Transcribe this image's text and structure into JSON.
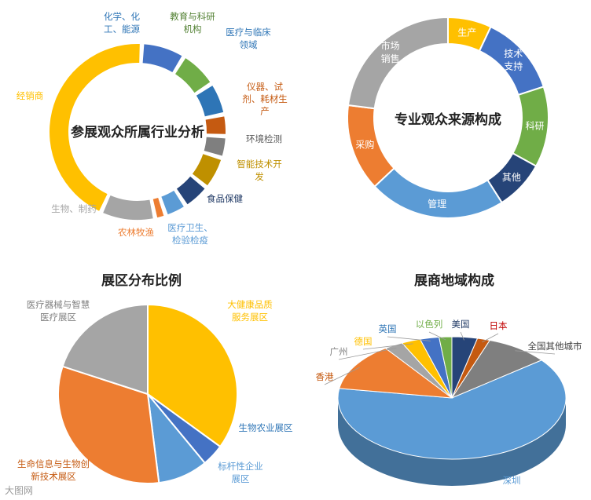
{
  "chart_data": [
    {
      "type": "pie",
      "variant": "donut",
      "title": "参展观众所属行业分析",
      "series": [
        {
          "values": [
            8,
            7,
            6,
            4,
            4,
            6,
            5,
            4,
            2,
            10,
            44
          ],
          "labels": [
            [
              "化学、化",
              "工、能源"
            ],
            [
              "教育与科研",
              "机构"
            ],
            [
              "医疗与临床",
              "领域"
            ],
            [
              "仪器、试",
              "剂、耗材生",
              "产"
            ],
            [
              "环境检测"
            ],
            [
              "智能技术开",
              "发"
            ],
            [
              "食品保健"
            ],
            [
              "医疗卫生、",
              "检验检疫"
            ],
            [
              "农林牧渔"
            ],
            [
              "生物、制药"
            ],
            [
              "经销商"
            ]
          ],
          "colors": [
            "#4472c4",
            "#70ad47",
            "#2e75b6",
            "#c55a11",
            "#7f7f7f",
            "#bf9000",
            "#264478",
            "#5b9bd5",
            "#ed7d31",
            "#a5a5a5",
            "#ffc000"
          ],
          "label_colors": [
            "#2e75b6",
            "#548235",
            "#2e75b6",
            "#c55a11",
            "#595959",
            "#bf9000",
            "#1f3864",
            "#5b9bd5",
            "#ed7d31",
            "#a5a5a5",
            "#ffc000"
          ]
        }
      ]
    },
    {
      "type": "pie",
      "variant": "donut",
      "title": "专业观众来源构成",
      "series": [
        {
          "values": [
            7,
            13,
            13,
            8,
            22,
            14,
            23
          ],
          "labels": [
            [
              "生产"
            ],
            [
              "技术",
              "支持"
            ],
            [
              "科研"
            ],
            [
              "其他"
            ],
            [
              "管理"
            ],
            [
              "采购"
            ],
            [
              "市场",
              "销售"
            ]
          ],
          "colors": [
            "#ffc000",
            "#4472c4",
            "#70ad47",
            "#264478",
            "#5b9bd5",
            "#ed7d31",
            "#a5a5a5"
          ],
          "label_colors": [
            "#ffffff",
            "#ffffff",
            "#ffffff",
            "#ffffff",
            "#ffffff",
            "#ffffff",
            "#ffffff"
          ]
        }
      ]
    },
    {
      "type": "pie",
      "title": "展区分布比例",
      "series": [
        {
          "values": [
            35,
            4,
            9,
            32,
            20
          ],
          "labels": [
            [
              "大健康品质",
              "服务展区"
            ],
            [
              "生物农业展区"
            ],
            [
              "标杆性企业",
              "展区"
            ],
            [
              "生命信息与生物创",
              "新技术展区"
            ],
            [
              "医疗器械与智慧",
              "医疗展区"
            ]
          ],
          "colors": [
            "#ffc000",
            "#4472c4",
            "#5b9bd5",
            "#ed7d31",
            "#a5a5a5"
          ],
          "label_colors": [
            "#ffc000",
            "#2e75b6",
            "#5b9bd5",
            "#c55a11",
            "#7f7f7f"
          ]
        }
      ]
    },
    {
      "type": "pie",
      "variant": "3d",
      "title": "展商地域构成",
      "series": [
        {
          "values": [
            70,
            14,
            3,
            3,
            3,
            2,
            4,
            2,
            10
          ],
          "labels": [
            [
              "深圳"
            ],
            [
              "香港"
            ],
            [
              "广州"
            ],
            [
              "德国"
            ],
            [
              "英国"
            ],
            [
              "以色列"
            ],
            [
              "美国"
            ],
            [
              "日本"
            ],
            [
              "全国其他城市"
            ]
          ],
          "colors": [
            "#5b9bd5",
            "#ed7d31",
            "#a5a5a5",
            "#ffc000",
            "#4472c4",
            "#70ad47",
            "#264478",
            "#c55a11",
            "#7f7f7f"
          ],
          "label_colors": [
            "#5b9bd5",
            "#c55a11",
            "#7f7f7f",
            "#ffc000",
            "#2e75b6",
            "#70ad47",
            "#1f3864",
            "#c00000",
            "#404040"
          ]
        }
      ]
    }
  ],
  "watermark": "大图网"
}
